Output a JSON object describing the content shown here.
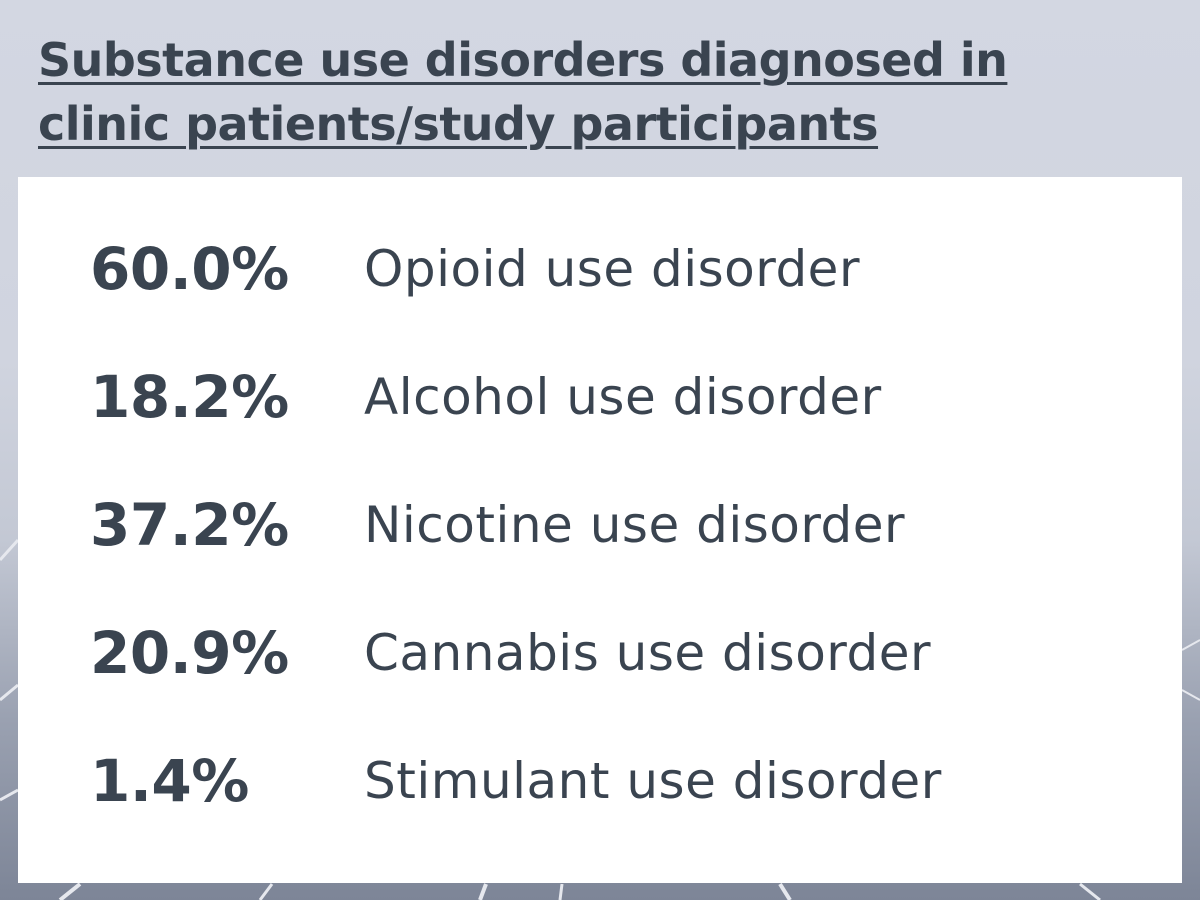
{
  "title": "Substance use disorders diagnosed in clinic patients/study participants",
  "items": [
    {
      "value": "60.0%",
      "label": "Opioid use disorder"
    },
    {
      "value": "18.2%",
      "label": "Alcohol use disorder"
    },
    {
      "value": "37.2%",
      "label": "Nicotine use disorder"
    },
    {
      "value": "20.9%",
      "label": "Cannabis use disorder"
    },
    {
      "value": "1.4%",
      "label": "Stimulant use disorder"
    }
  ],
  "colors": {
    "text": "#3a4450",
    "panel": "#ffffff",
    "background": "#d5d9e3"
  }
}
